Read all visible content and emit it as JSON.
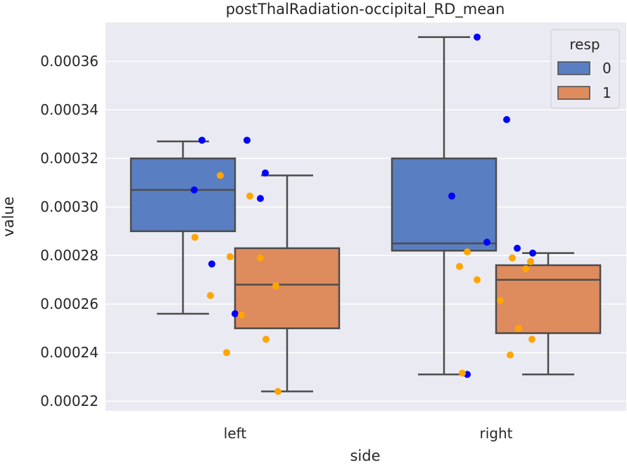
{
  "chart_data": {
    "type": "box",
    "title": "postThalRadiation-occipital_RD_mean",
    "xlabel": "side",
    "ylabel": "value",
    "categories": [
      "left",
      "right"
    ],
    "ylim": [
      0.000216,
      0.000376
    ],
    "yticks": [
      0.00022,
      0.00024,
      0.00026,
      0.00028,
      0.0003,
      0.00032,
      0.00034,
      0.00036
    ],
    "ytick_labels": [
      "0.00022",
      "0.00024",
      "0.00026",
      "0.00028",
      "0.00030",
      "0.00032",
      "0.00034",
      "0.00036"
    ],
    "grid": true,
    "legend": {
      "title": "resp",
      "position": "top-right",
      "entries": [
        "0",
        "1"
      ]
    },
    "colors": {
      "background": "#eaeaf2",
      "box_0": "#5a7ec2",
      "box_1": "#de8b5d",
      "box_edge": "#4c4c4c",
      "points_0": "#0000ff",
      "points_1": "#ffa500"
    },
    "series": [
      {
        "name": "0",
        "boxes": [
          {
            "category": "left",
            "whisker_low": 0.000256,
            "q1": 0.00029,
            "median": 0.000307,
            "q3": 0.00032,
            "whisker_high": 0.000327
          },
          {
            "category": "right",
            "whisker_low": 0.000231,
            "q1": 0.000282,
            "median": 0.000285,
            "q3": 0.00032,
            "whisker_high": 0.00037
          }
        ],
        "points": [
          {
            "category": "left",
            "values": [
              0.0003275,
              0.0003275,
              0.000314,
              0.000307,
              0.0003035,
              0.0002765,
              0.000256
            ]
          },
          {
            "category": "right",
            "values": [
              0.00037,
              0.000336,
              0.0003045,
              0.0002855,
              0.000283,
              0.000281,
              0.000231
            ]
          }
        ]
      },
      {
        "name": "1",
        "boxes": [
          {
            "category": "left",
            "whisker_low": 0.000224,
            "q1": 0.00025,
            "median": 0.000268,
            "q3": 0.000283,
            "whisker_high": 0.000313
          },
          {
            "category": "right",
            "whisker_low": 0.000231,
            "q1": 0.000248,
            "median": 0.00027,
            "q3": 0.000276,
            "whisker_high": 0.000281
          }
        ],
        "points": [
          {
            "category": "left",
            "values": [
              0.000313,
              0.0003045,
              0.0002875,
              0.0002795,
              0.000279,
              0.0002675,
              0.0002635,
              0.0002555,
              0.0002455,
              0.00024,
              0.000224
            ]
          },
          {
            "category": "right",
            "values": [
              0.0002815,
              0.000279,
              0.0002775,
              0.0002755,
              0.0002745,
              0.00027,
              0.0002615,
              0.00025,
              0.0002455,
              0.000239,
              0.0002315
            ]
          }
        ]
      }
    ]
  }
}
